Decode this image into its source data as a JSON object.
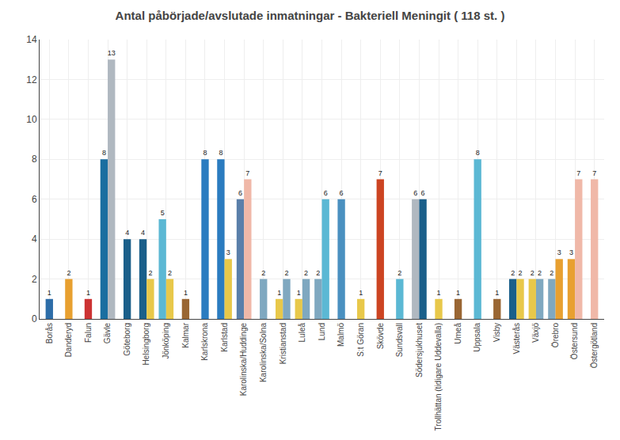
{
  "chart_data": {
    "type": "bar",
    "title": "Antal påbörjade/avslutade inmatningar - Bakteriell Meningit ( 118 st. )",
    "categories": [
      "Borås",
      "Danderyd",
      "Falun",
      "Gävle",
      "Göteborg",
      "Helsingborg",
      "Jönköping",
      "Kalmar",
      "Karlskrona",
      "Karlstad",
      "Karolinska/Huddinge",
      "Karolinska/Solna",
      "Kristianstad",
      "Luleå",
      "Lund",
      "Malmö",
      "S:t Göran",
      "Skövde",
      "Sundsvall",
      "Södersjukhuset",
      "Trollhättan (tidigare Uddevalla)",
      "Umeå",
      "Uppsala",
      "Visby",
      "Västerås",
      "Växjö",
      "Örebro",
      "Östersund",
      "Östergötland"
    ],
    "series": [
      {
        "values": [
          1,
          2,
          1,
          8,
          4,
          4,
          5,
          1,
          8,
          8,
          6,
          2,
          1,
          1,
          2,
          6,
          1,
          7,
          2,
          6,
          1,
          1,
          8,
          1,
          2,
          2,
          2,
          3,
          7
        ],
        "colors": [
          "#2D6DA8",
          "#E8A030",
          "#CC3333",
          "#1A6EA0",
          "#1A5F8A",
          "#1A5F8A",
          "#5BB8D4",
          "#996633",
          "#2B7CC0",
          "#2B7CC0",
          "#5A7FAA",
          "#7FA8C0",
          "#E8C84A",
          "#E8C84A",
          "#7FA8C0",
          "#4A90C0",
          "#E8C84A",
          "#CC4422",
          "#5BB8D4",
          "#B0B8C0",
          "#E8C84A",
          "#996633",
          "#5BB8D4",
          "#996633",
          "#1A5F8A",
          "#E8C84A",
          "#7FA8C0",
          "#E8A030",
          "#F0B8A8"
        ]
      },
      {
        "values": [
          null,
          null,
          null,
          13,
          null,
          2,
          2,
          null,
          null,
          3,
          7,
          null,
          2,
          2,
          6,
          null,
          null,
          null,
          null,
          6,
          null,
          null,
          null,
          null,
          2,
          2,
          3,
          7,
          null
        ],
        "colors": [
          null,
          null,
          null,
          "#B0B8C0",
          null,
          "#E8C84A",
          "#E8C84A",
          null,
          null,
          "#E8C84A",
          "#F0B8A8",
          null,
          "#7FA8C0",
          "#7FA8C0",
          "#5BB8D4",
          null,
          null,
          null,
          null,
          "#1A5F8A",
          null,
          null,
          null,
          null,
          "#E8C84A",
          "#7FA8C0",
          "#E8A030",
          "#F0B8A8",
          null
        ]
      }
    ],
    "ylim": [
      0,
      14
    ],
    "yticks": [
      0,
      2,
      4,
      6,
      8,
      10,
      12,
      14
    ],
    "grid": true,
    "data_labels": true
  }
}
